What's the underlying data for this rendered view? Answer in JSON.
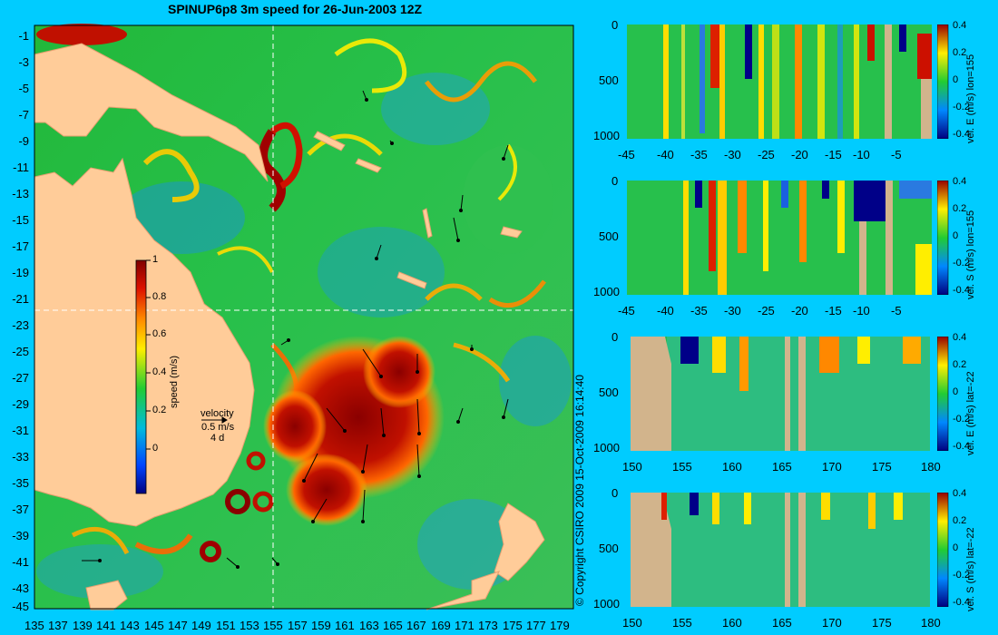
{
  "title": "SPINUP6p8 3m speed for 26-Jun-2003 12Z",
  "copyright": "© Copyright CSIRO 2009 15-Oct-2009 16:14:40",
  "map": {
    "lat_labels": [
      "-1",
      "-3",
      "-5",
      "-7",
      "-9",
      "-11",
      "-13",
      "-15",
      "-17",
      "-19",
      "-21",
      "-23",
      "-25",
      "-27",
      "-29",
      "-31",
      "-33",
      "-35",
      "-37",
      "-39",
      "-41",
      "-43",
      "-45"
    ],
    "lon_labels": [
      "135",
      "137",
      "139",
      "141",
      "143",
      "145",
      "147",
      "149",
      "151",
      "153",
      "155",
      "157",
      "159",
      "161",
      "163",
      "165",
      "167",
      "169",
      "171",
      "173",
      "175",
      "177",
      "179"
    ],
    "crosshair": {
      "lon": 155,
      "lat": -22
    },
    "colors": {
      "land": "#ffcc99",
      "ocean_low": "#1a8cff",
      "ocean_mid": "#22c030",
      "ocean_high": "#a00000"
    }
  },
  "colorbar": {
    "label": "speed (m/s)",
    "ticks": [
      "1",
      "0.8",
      "0.6",
      "0.4",
      "0.2",
      "0"
    ]
  },
  "velocity_legend": {
    "title": "velocity",
    "scale": "0.5 m/s",
    "duration": "4 d"
  },
  "panels": [
    {
      "label": "vel. E (m/s) lon=155",
      "xticks": [
        "-45",
        "-40",
        "-35",
        "-30",
        "-25",
        "-20",
        "-15",
        "-10",
        "-5"
      ],
      "yticks": [
        "0",
        "500",
        "1000"
      ],
      "cticks": [
        "0.4",
        "0.2",
        "0",
        "-0.2",
        "-0.4"
      ]
    },
    {
      "label": "vel. S (m/s) lon=155",
      "xticks": [
        "-45",
        "-40",
        "-35",
        "-30",
        "-25",
        "-20",
        "-15",
        "-10",
        "-5"
      ],
      "yticks": [
        "0",
        "500",
        "1000"
      ],
      "cticks": [
        "0.4",
        "0.2",
        "0",
        "-0.2",
        "-0.4"
      ]
    },
    {
      "label": "vel. E (m/s) lat=-22",
      "xticks": [
        "150",
        "155",
        "160",
        "165",
        "170",
        "175",
        "180"
      ],
      "yticks": [
        "0",
        "500",
        "1000"
      ],
      "cticks": [
        "0.4",
        "0.2",
        "0",
        "-0.2",
        "-0.4"
      ]
    },
    {
      "label": "vel. S (m/s) lat=-22",
      "xticks": [
        "150",
        "155",
        "160",
        "165",
        "170",
        "175",
        "180"
      ],
      "yticks": [
        "0",
        "500",
        "1000"
      ],
      "cticks": [
        "0.4",
        "0.2",
        "0",
        "-0.2",
        "-0.4"
      ]
    }
  ]
}
